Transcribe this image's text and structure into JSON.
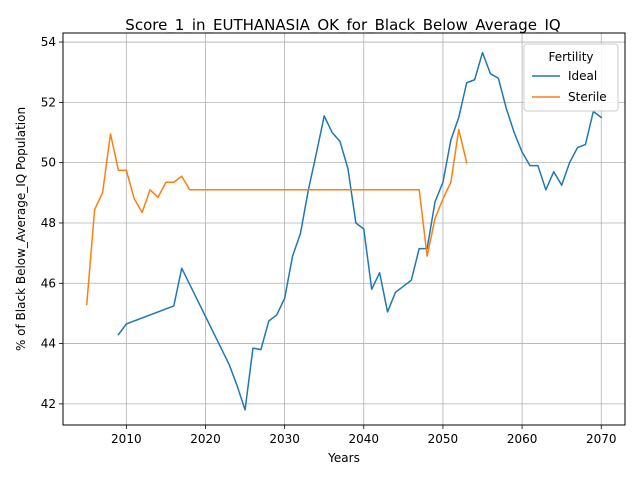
{
  "chart_data": {
    "type": "line",
    "title": "Score_1_in_EUTHANASIA_OK_for_Black_Below_Average_IQ",
    "xlabel": "Years",
    "ylabel": "% of Black Below_Average_IQ Population",
    "xlim": [
      2002,
      2073
    ],
    "ylim": [
      41.3,
      54.3
    ],
    "xticks": [
      2010,
      2020,
      2030,
      2040,
      2050,
      2060,
      2070
    ],
    "yticks": [
      42,
      44,
      46,
      48,
      50,
      52,
      54
    ],
    "grid": true,
    "legend": {
      "title": "Fertility",
      "placement": "top-right"
    },
    "series": [
      {
        "name": "Ideal",
        "color": "#1f77b4",
        "points": [
          [
            2009,
            44.3
          ],
          [
            2010,
            44.65
          ],
          [
            2016,
            45.25
          ],
          [
            2017,
            46.5
          ],
          [
            2023,
            43.3
          ],
          [
            2024,
            42.6
          ],
          [
            2025,
            41.8
          ],
          [
            2026,
            43.85
          ],
          [
            2027,
            43.8
          ],
          [
            2028,
            44.75
          ],
          [
            2029,
            44.95
          ],
          [
            2030,
            45.5
          ],
          [
            2031,
            46.9
          ],
          [
            2032,
            47.65
          ],
          [
            2033,
            49.1
          ],
          [
            2034,
            50.3
          ],
          [
            2035,
            51.55
          ],
          [
            2036,
            51.0
          ],
          [
            2037,
            50.7
          ],
          [
            2038,
            49.8
          ],
          [
            2039,
            48.0
          ],
          [
            2040,
            47.8
          ],
          [
            2041,
            45.8
          ],
          [
            2042,
            46.35
          ],
          [
            2043,
            45.05
          ],
          [
            2044,
            45.7
          ],
          [
            2045,
            45.9
          ],
          [
            2046,
            46.1
          ],
          [
            2047,
            47.15
          ],
          [
            2048,
            47.15
          ],
          [
            2049,
            48.7
          ],
          [
            2050,
            49.35
          ],
          [
            2051,
            50.75
          ],
          [
            2052,
            51.5
          ],
          [
            2053,
            52.65
          ],
          [
            2054,
            52.75
          ],
          [
            2055,
            53.65
          ],
          [
            2056,
            52.95
          ],
          [
            2057,
            52.8
          ],
          [
            2058,
            51.8
          ],
          [
            2059,
            51.0
          ],
          [
            2060,
            50.35
          ],
          [
            2061,
            49.9
          ],
          [
            2062,
            49.9
          ],
          [
            2063,
            49.1
          ],
          [
            2064,
            49.7
          ],
          [
            2065,
            49.25
          ],
          [
            2066,
            50.0
          ],
          [
            2067,
            50.5
          ],
          [
            2068,
            50.6
          ],
          [
            2069,
            51.7
          ],
          [
            2070,
            51.5
          ]
        ]
      },
      {
        "name": "Sterile",
        "color": "#ff7f0e",
        "points": [
          [
            2005,
            45.3
          ],
          [
            2006,
            48.45
          ],
          [
            2007,
            49.0
          ],
          [
            2008,
            50.95
          ],
          [
            2009,
            49.75
          ],
          [
            2010,
            49.75
          ],
          [
            2011,
            48.8
          ],
          [
            2012,
            48.35
          ],
          [
            2013,
            49.1
          ],
          [
            2014,
            48.85
          ],
          [
            2015,
            49.35
          ],
          [
            2016,
            49.35
          ],
          [
            2017,
            49.55
          ],
          [
            2018,
            49.1
          ],
          [
            2047,
            49.1
          ],
          [
            2048,
            46.9
          ],
          [
            2049,
            48.15
          ],
          [
            2050,
            48.8
          ],
          [
            2051,
            49.35
          ],
          [
            2052,
            51.1
          ],
          [
            2053,
            50.0
          ]
        ]
      }
    ]
  }
}
